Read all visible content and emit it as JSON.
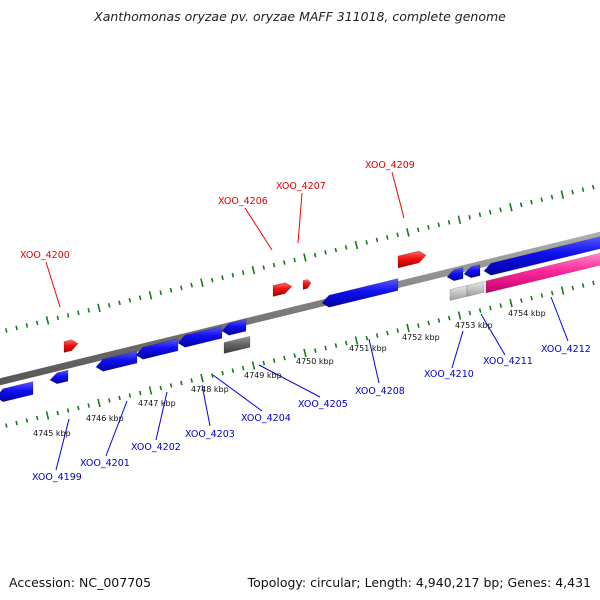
{
  "title": "Xanthomonas oryzae pv. oryzae MAFF 311018, complete genome",
  "footer": {
    "accession": "Accession: NC_007705",
    "summary": "Topology: circular; Length: 4,940,217 bp; Genes: 4,431"
  },
  "colors": {
    "backbone": "#8a8a8a",
    "tick": "#1a7a1a",
    "minus_strand_gene": "#0000ee",
    "plus_strand_gene": "#ee0000",
    "rrna_like_feature": "#ff1c98",
    "grey_feature": "#666666",
    "light_grey_feature": "#c6c6c6",
    "minus_label": "#0000cc",
    "plus_label": "#dd0000",
    "scale_label": "#111111"
  },
  "scale_labels": [
    "4745 kbp",
    "4746 kbp",
    "4747 kbp",
    "4748 kbp",
    "4749 kbp",
    "4750 kbp",
    "4751 kbp",
    "4752 kbp",
    "4753 kbp",
    "4754 kbp"
  ],
  "plus_strand_genes": [
    "XOO_4200",
    "XOO_4206",
    "XOO_4207",
    "XOO_4209"
  ],
  "minus_strand_genes": [
    "XOO_4199",
    "XOO_4201",
    "XOO_4202",
    "XOO_4203",
    "XOO_4204",
    "XOO_4205",
    "XOO_4208",
    "XOO_4210",
    "XOO_4211",
    "XOO_4212"
  ]
}
